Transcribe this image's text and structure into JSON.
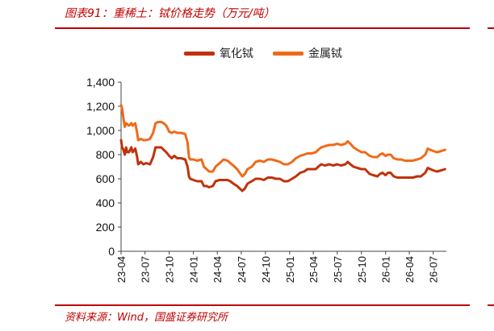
{
  "header": {
    "title": "图表91：重稀土：铽价格走势（万元/吨）"
  },
  "footer": {
    "source": "资料来源：Wind，国盛证券研究所"
  },
  "colors": {
    "brand": "#c00000",
    "series_oxide": "#c0320a",
    "series_metal": "#f06a18"
  },
  "chart_data": {
    "type": "line",
    "title": "",
    "xlabel": "",
    "ylabel": "",
    "ylim": [
      0,
      1400
    ],
    "yticks": [
      "0",
      "200",
      "400",
      "600",
      "800",
      "1,000",
      "1,200",
      "1,400"
    ],
    "xticks": [
      "23-04",
      "23-07",
      "23-10",
      "24-01",
      "24-04",
      "24-07",
      "24-10",
      "25-01",
      "25-04",
      "25-07",
      "25-10",
      "26-01",
      "26-04",
      "26-07"
    ],
    "legend_position": "top-center",
    "grid": false,
    "series": [
      {
        "name": "氧化铽",
        "color": "#c0320a",
        "points": [
          [
            "2023-04-01",
            920
          ],
          [
            "2023-04-05",
            860
          ],
          [
            "2023-04-10",
            840
          ],
          [
            "2023-04-15",
            800
          ],
          [
            "2023-04-20",
            860
          ],
          [
            "2023-04-25",
            820
          ],
          [
            "2023-05-01",
            820
          ],
          [
            "2023-05-10",
            860
          ],
          [
            "2023-05-15",
            820
          ],
          [
            "2023-05-25",
            850
          ],
          [
            "2023-06-01",
            780
          ],
          [
            "2023-06-05",
            720
          ],
          [
            "2023-06-15",
            740
          ],
          [
            "2023-06-25",
            720
          ],
          [
            "2023-07-05",
            730
          ],
          [
            "2023-07-20",
            720
          ],
          [
            "2023-08-01",
            780
          ],
          [
            "2023-08-10",
            860
          ],
          [
            "2023-08-20",
            860
          ],
          [
            "2023-09-01",
            860
          ],
          [
            "2023-09-10",
            840
          ],
          [
            "2023-09-20",
            820
          ],
          [
            "2023-10-01",
            790
          ],
          [
            "2023-10-10",
            770
          ],
          [
            "2023-10-20",
            790
          ],
          [
            "2023-11-01",
            770
          ],
          [
            "2023-11-15",
            770
          ],
          [
            "2023-12-01",
            760
          ],
          [
            "2023-12-10",
            700
          ],
          [
            "2023-12-15",
            620
          ],
          [
            "2023-12-20",
            600
          ],
          [
            "2024-01-01",
            590
          ],
          [
            "2024-01-15",
            580
          ],
          [
            "2024-02-01",
            580
          ],
          [
            "2024-02-10",
            540
          ],
          [
            "2024-02-20",
            540
          ],
          [
            "2024-03-01",
            530
          ],
          [
            "2024-03-15",
            540
          ],
          [
            "2024-03-25",
            580
          ],
          [
            "2024-04-10",
            590
          ],
          [
            "2024-04-25",
            590
          ],
          [
            "2024-05-10",
            590
          ],
          [
            "2024-05-20",
            580
          ],
          [
            "2024-06-01",
            560
          ],
          [
            "2024-06-15",
            540
          ],
          [
            "2024-06-25",
            520
          ],
          [
            "2024-07-05",
            500
          ],
          [
            "2024-07-15",
            520
          ],
          [
            "2024-07-25",
            560
          ],
          [
            "2024-08-10",
            580
          ],
          [
            "2024-08-25",
            600
          ],
          [
            "2024-09-10",
            600
          ],
          [
            "2024-09-25",
            590
          ],
          [
            "2024-10-10",
            610
          ],
          [
            "2024-10-25",
            610
          ],
          [
            "2024-11-10",
            600
          ],
          [
            "2024-11-25",
            600
          ],
          [
            "2024-12-10",
            580
          ],
          [
            "2024-12-25",
            580
          ],
          [
            "2025-01-10",
            600
          ],
          [
            "2025-01-25",
            620
          ],
          [
            "2025-02-10",
            650
          ],
          [
            "2025-02-25",
            660
          ],
          [
            "2025-03-10",
            680
          ],
          [
            "2025-03-25",
            680
          ],
          [
            "2025-04-10",
            680
          ],
          [
            "2025-04-20",
            700
          ],
          [
            "2025-05-01",
            720
          ],
          [
            "2025-05-15",
            710
          ],
          [
            "2025-06-01",
            720
          ],
          [
            "2025-06-15",
            710
          ],
          [
            "2025-07-01",
            720
          ],
          [
            "2025-07-15",
            710
          ],
          [
            "2025-08-01",
            720
          ],
          [
            "2025-08-10",
            740
          ],
          [
            "2025-08-20",
            720
          ],
          [
            "2025-09-01",
            700
          ],
          [
            "2025-09-15",
            690
          ],
          [
            "2025-10-01",
            680
          ],
          [
            "2025-10-15",
            680
          ],
          [
            "2025-11-01",
            640
          ],
          [
            "2025-11-15",
            630
          ],
          [
            "2025-12-01",
            620
          ],
          [
            "2025-12-10",
            640
          ],
          [
            "2025-12-20",
            650
          ],
          [
            "2026-01-01",
            630
          ],
          [
            "2026-01-10",
            650
          ],
          [
            "2026-01-20",
            650
          ],
          [
            "2026-02-01",
            620
          ],
          [
            "2026-02-15",
            610
          ],
          [
            "2026-03-01",
            610
          ],
          [
            "2026-03-15",
            610
          ],
          [
            "2026-04-01",
            610
          ],
          [
            "2026-04-15",
            610
          ],
          [
            "2026-05-01",
            620
          ],
          [
            "2026-05-15",
            620
          ],
          [
            "2026-06-01",
            650
          ],
          [
            "2026-06-10",
            690
          ],
          [
            "2026-06-20",
            680
          ],
          [
            "2026-07-01",
            670
          ],
          [
            "2026-07-15",
            660
          ],
          [
            "2026-08-01",
            670
          ],
          [
            "2026-08-15",
            680
          ]
        ]
      },
      {
        "name": "金属铽",
        "color": "#f06a18",
        "points": [
          [
            "2023-04-01",
            1210
          ],
          [
            "2023-04-05",
            1180
          ],
          [
            "2023-04-10",
            1100
          ],
          [
            "2023-04-15",
            1030
          ],
          [
            "2023-04-20",
            1060
          ],
          [
            "2023-04-25",
            1050
          ],
          [
            "2023-05-01",
            1040
          ],
          [
            "2023-05-10",
            1060
          ],
          [
            "2023-05-15",
            1040
          ],
          [
            "2023-05-25",
            1060
          ],
          [
            "2023-06-01",
            980
          ],
          [
            "2023-06-05",
            920
          ],
          [
            "2023-06-15",
            930
          ],
          [
            "2023-06-25",
            920
          ],
          [
            "2023-07-05",
            920
          ],
          [
            "2023-07-20",
            930
          ],
          [
            "2023-08-01",
            980
          ],
          [
            "2023-08-10",
            1060
          ],
          [
            "2023-08-20",
            1070
          ],
          [
            "2023-09-01",
            1070
          ],
          [
            "2023-09-10",
            1060
          ],
          [
            "2023-09-20",
            1040
          ],
          [
            "2023-10-01",
            990
          ],
          [
            "2023-10-10",
            980
          ],
          [
            "2023-10-20",
            990
          ],
          [
            "2023-11-01",
            980
          ],
          [
            "2023-11-15",
            980
          ],
          [
            "2023-12-01",
            970
          ],
          [
            "2023-12-10",
            900
          ],
          [
            "2023-12-15",
            780
          ],
          [
            "2023-12-20",
            760
          ],
          [
            "2024-01-01",
            760
          ],
          [
            "2024-01-15",
            750
          ],
          [
            "2024-02-01",
            760
          ],
          [
            "2024-02-10",
            700
          ],
          [
            "2024-02-20",
            680
          ],
          [
            "2024-03-01",
            660
          ],
          [
            "2024-03-15",
            660
          ],
          [
            "2024-03-25",
            700
          ],
          [
            "2024-04-10",
            730
          ],
          [
            "2024-04-25",
            760
          ],
          [
            "2024-05-10",
            750
          ],
          [
            "2024-05-20",
            730
          ],
          [
            "2024-06-01",
            710
          ],
          [
            "2024-06-15",
            680
          ],
          [
            "2024-06-25",
            650
          ],
          [
            "2024-07-05",
            620
          ],
          [
            "2024-07-15",
            640
          ],
          [
            "2024-07-25",
            680
          ],
          [
            "2024-08-10",
            700
          ],
          [
            "2024-08-25",
            740
          ],
          [
            "2024-09-10",
            750
          ],
          [
            "2024-09-25",
            740
          ],
          [
            "2024-10-10",
            760
          ],
          [
            "2024-10-25",
            760
          ],
          [
            "2024-11-10",
            750
          ],
          [
            "2024-11-25",
            740
          ],
          [
            "2024-12-10",
            720
          ],
          [
            "2024-12-25",
            720
          ],
          [
            "2025-01-10",
            740
          ],
          [
            "2025-01-25",
            770
          ],
          [
            "2025-02-10",
            790
          ],
          [
            "2025-02-25",
            800
          ],
          [
            "2025-03-10",
            810
          ],
          [
            "2025-03-25",
            810
          ],
          [
            "2025-04-10",
            820
          ],
          [
            "2025-04-20",
            840
          ],
          [
            "2025-05-01",
            860
          ],
          [
            "2025-05-15",
            870
          ],
          [
            "2025-06-01",
            880
          ],
          [
            "2025-06-15",
            880
          ],
          [
            "2025-07-01",
            890
          ],
          [
            "2025-07-15",
            880
          ],
          [
            "2025-08-01",
            890
          ],
          [
            "2025-08-10",
            910
          ],
          [
            "2025-08-20",
            890
          ],
          [
            "2025-09-01",
            860
          ],
          [
            "2025-09-15",
            840
          ],
          [
            "2025-10-01",
            820
          ],
          [
            "2025-10-15",
            820
          ],
          [
            "2025-11-01",
            790
          ],
          [
            "2025-11-15",
            780
          ],
          [
            "2025-12-01",
            780
          ],
          [
            "2025-12-10",
            800
          ],
          [
            "2025-12-20",
            810
          ],
          [
            "2026-01-01",
            790
          ],
          [
            "2026-01-10",
            800
          ],
          [
            "2026-01-20",
            800
          ],
          [
            "2026-02-01",
            770
          ],
          [
            "2026-02-15",
            760
          ],
          [
            "2026-03-01",
            760
          ],
          [
            "2026-03-15",
            750
          ],
          [
            "2026-04-01",
            750
          ],
          [
            "2026-04-15",
            750
          ],
          [
            "2026-05-01",
            760
          ],
          [
            "2026-05-15",
            770
          ],
          [
            "2026-06-01",
            800
          ],
          [
            "2026-06-10",
            850
          ],
          [
            "2026-06-20",
            840
          ],
          [
            "2026-07-01",
            830
          ],
          [
            "2026-07-15",
            820
          ],
          [
            "2026-08-01",
            830
          ],
          [
            "2026-08-15",
            840
          ]
        ]
      }
    ]
  }
}
